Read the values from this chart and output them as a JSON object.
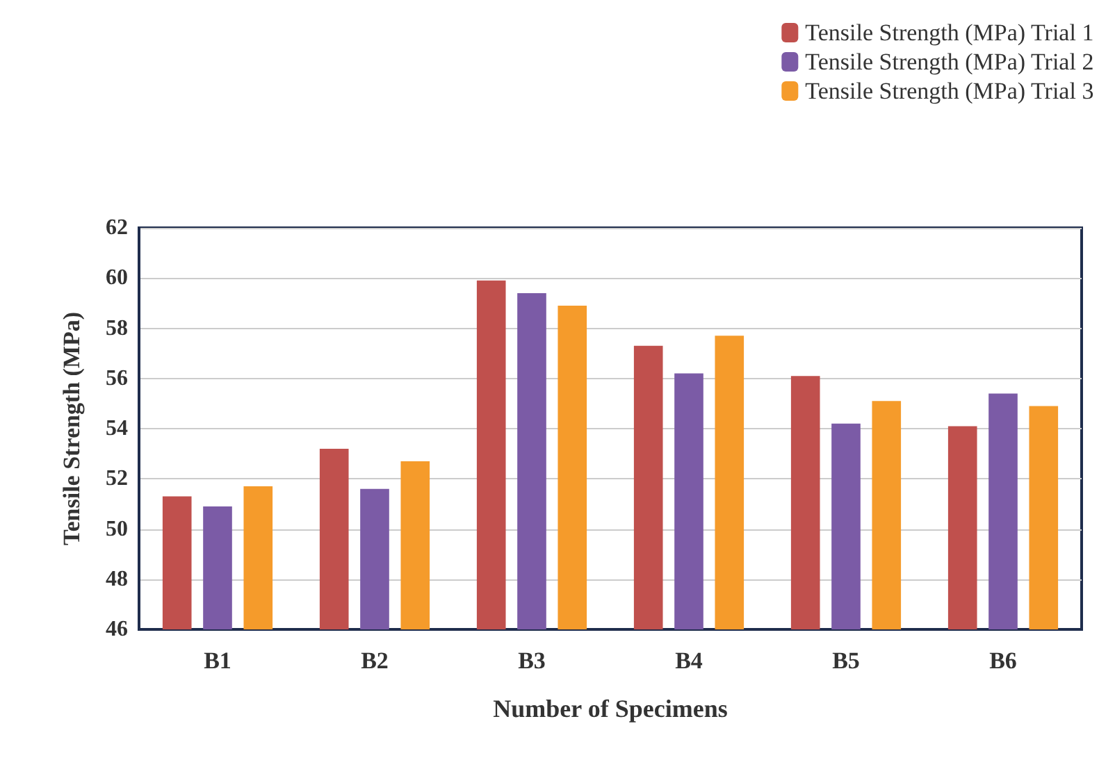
{
  "chart_data": {
    "type": "bar",
    "xlabel": "Number of Specimens",
    "ylabel": "Tensile Strength (MPa)",
    "categories": [
      "B1",
      "B2",
      "B3",
      "B4",
      "B5",
      "B6"
    ],
    "series": [
      {
        "name": "Tensile Strength (MPa) Trial 1",
        "color": "#c0504d",
        "values": [
          51.3,
          53.2,
          59.9,
          57.3,
          56.1,
          54.1
        ]
      },
      {
        "name": "Tensile Strength (MPa) Trial 2",
        "color": "#7b5ba6",
        "values": [
          50.9,
          51.6,
          59.4,
          56.2,
          54.2,
          55.4
        ]
      },
      {
        "name": "Tensile Strength (MPa) Trial 3",
        "color": "#f59b2b",
        "values": [
          51.7,
          52.7,
          58.9,
          57.7,
          55.1,
          54.9
        ]
      }
    ],
    "ylim": [
      46,
      62
    ],
    "yticks": [
      46,
      48,
      50,
      52,
      54,
      56,
      58,
      60,
      62
    ],
    "grid": "y",
    "legend": "top right"
  }
}
